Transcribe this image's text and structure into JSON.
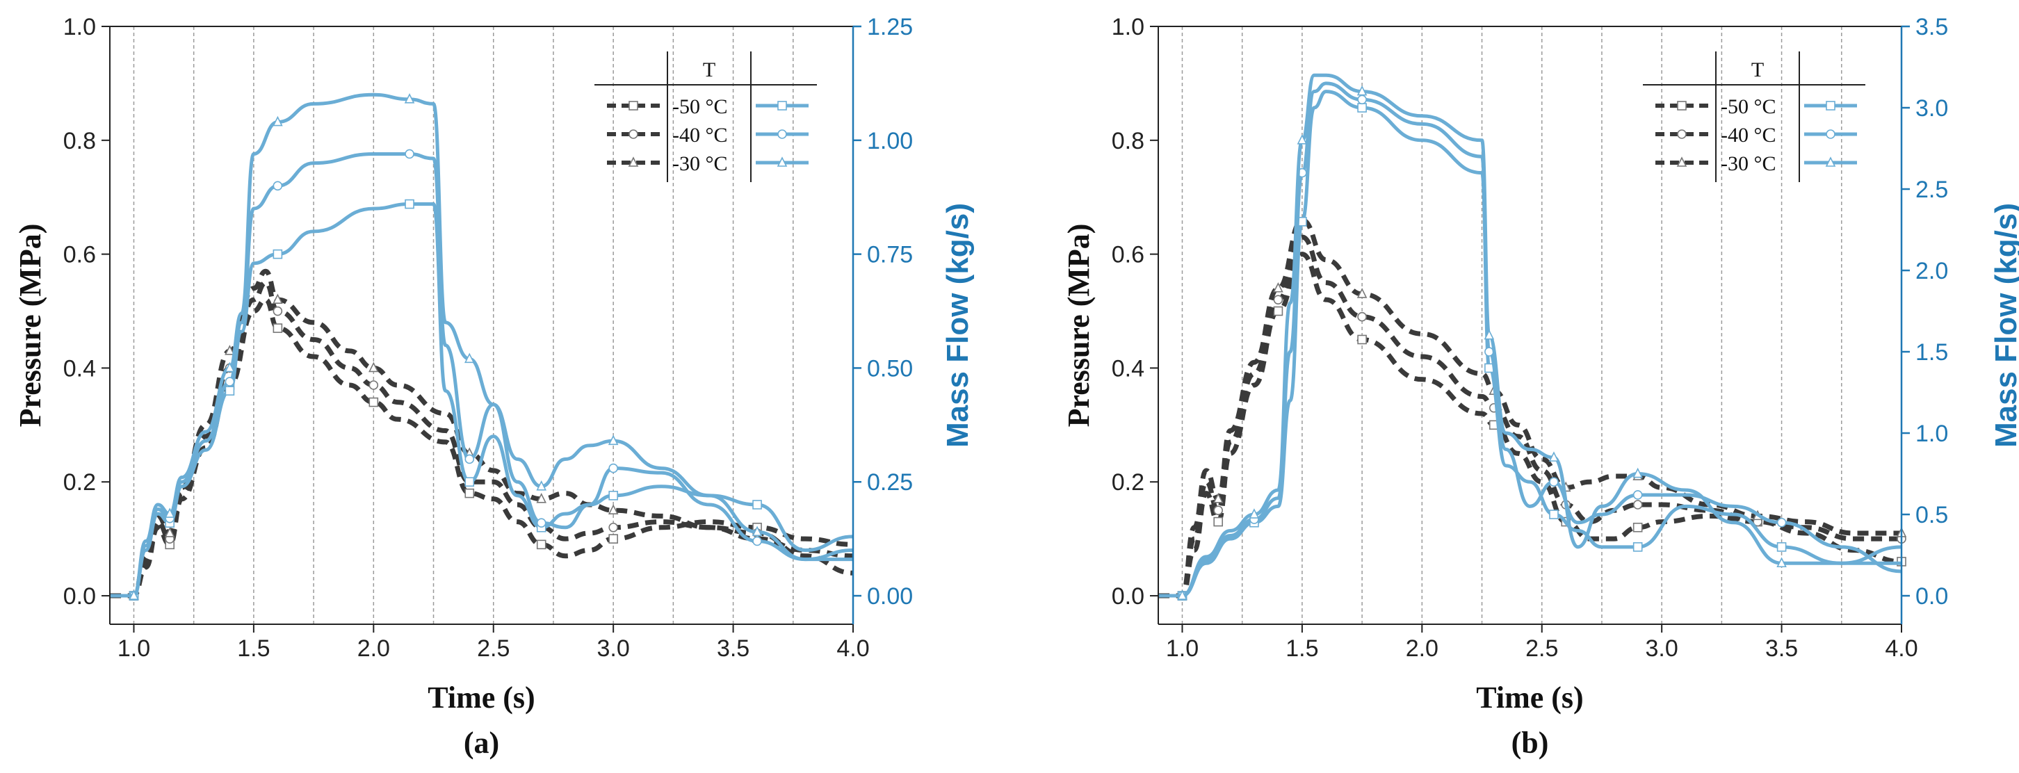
{
  "colors": {
    "pressure": "#3a3a3a",
    "massflow": "#6aadd5",
    "massflow_axis": "#1f78b4",
    "grid": "#9a9a9a"
  },
  "chart_data": [
    {
      "type": "line",
      "panel_label": "(a)",
      "xlabel": "Time (s)",
      "ylabel_left": "Pressure (MPa)",
      "ylabel_right": "Mass Flow (kg/s)",
      "xlim": [
        0.9,
        4.0
      ],
      "ylim_left": [
        -0.05,
        1.0
      ],
      "ylim_right": [
        -0.0625,
        1.25
      ],
      "xticks": [
        "1.0",
        "1.5",
        "2.0",
        "2.5",
        "3.0",
        "3.5",
        "4.0"
      ],
      "yticks_left": [
        "0.0",
        "0.2",
        "0.4",
        "0.6",
        "0.8",
        "1.0"
      ],
      "yticks_right": [
        "0.00",
        "0.25",
        "0.50",
        "0.75",
        "1.00",
        "1.25"
      ],
      "vgrid": [
        1.0,
        1.25,
        1.5,
        1.75,
        2.0,
        2.25,
        2.5,
        2.75,
        3.0,
        3.25,
        3.5,
        3.75
      ],
      "legend": {
        "title": "T",
        "entries": [
          "-50 °C",
          "-40 °C",
          "-30 °C"
        ]
      },
      "series": [
        {
          "name": "Pressure -50 °C",
          "axis": "left",
          "style": "dashed",
          "marker": "square",
          "x": [
            0.9,
            1.0,
            1.05,
            1.1,
            1.15,
            1.2,
            1.3,
            1.4,
            1.5,
            1.55,
            1.6,
            1.75,
            1.9,
            2.0,
            2.1,
            2.3,
            2.4,
            2.5,
            2.6,
            2.7,
            2.8,
            2.9,
            3.0,
            3.2,
            3.4,
            3.6,
            3.8,
            4.0
          ],
          "y": [
            0.0,
            0.0,
            0.05,
            0.12,
            0.09,
            0.17,
            0.26,
            0.37,
            0.5,
            0.52,
            0.47,
            0.42,
            0.37,
            0.34,
            0.31,
            0.27,
            0.18,
            0.17,
            0.13,
            0.09,
            0.07,
            0.08,
            0.1,
            0.12,
            0.13,
            0.12,
            0.1,
            0.09
          ]
        },
        {
          "name": "Pressure -40 °C",
          "axis": "left",
          "style": "dashed",
          "marker": "circle",
          "x": [
            0.9,
            1.0,
            1.05,
            1.1,
            1.15,
            1.2,
            1.3,
            1.4,
            1.5,
            1.55,
            1.6,
            1.75,
            1.9,
            2.0,
            2.1,
            2.3,
            2.4,
            2.5,
            2.6,
            2.7,
            2.8,
            2.9,
            3.0,
            3.2,
            3.4,
            3.6,
            3.8,
            4.0
          ],
          "y": [
            0.0,
            0.0,
            0.06,
            0.13,
            0.1,
            0.18,
            0.28,
            0.4,
            0.52,
            0.55,
            0.5,
            0.45,
            0.4,
            0.37,
            0.34,
            0.29,
            0.2,
            0.2,
            0.16,
            0.12,
            0.1,
            0.11,
            0.12,
            0.13,
            0.12,
            0.11,
            0.07,
            0.04
          ]
        },
        {
          "name": "Pressure -30 °C",
          "axis": "left",
          "style": "dashed",
          "marker": "triangle",
          "x": [
            0.9,
            1.0,
            1.05,
            1.1,
            1.15,
            1.2,
            1.3,
            1.4,
            1.5,
            1.55,
            1.6,
            1.75,
            1.9,
            2.0,
            2.1,
            2.3,
            2.4,
            2.5,
            2.6,
            2.7,
            2.8,
            2.9,
            3.0,
            3.2,
            3.4,
            3.6,
            3.8,
            4.0
          ],
          "y": [
            0.0,
            0.0,
            0.07,
            0.14,
            0.11,
            0.19,
            0.3,
            0.43,
            0.54,
            0.57,
            0.52,
            0.48,
            0.43,
            0.4,
            0.37,
            0.32,
            0.25,
            0.22,
            0.18,
            0.17,
            0.18,
            0.16,
            0.15,
            0.14,
            0.12,
            0.1,
            0.08,
            0.07
          ]
        },
        {
          "name": "Mass flow -50 °C",
          "axis": "right",
          "style": "solid",
          "marker": "square",
          "x": [
            0.9,
            1.0,
            1.05,
            1.1,
            1.15,
            1.2,
            1.3,
            1.4,
            1.45,
            1.5,
            1.6,
            1.75,
            2.0,
            2.15,
            2.25,
            2.3,
            2.4,
            2.5,
            2.6,
            2.7,
            2.8,
            2.9,
            3.0,
            3.2,
            3.4,
            3.6,
            3.8,
            4.0
          ],
          "y": [
            0.0,
            0.0,
            0.1,
            0.18,
            0.16,
            0.24,
            0.32,
            0.45,
            0.58,
            0.73,
            0.75,
            0.8,
            0.85,
            0.86,
            0.86,
            0.45,
            0.25,
            0.35,
            0.22,
            0.15,
            0.18,
            0.2,
            0.22,
            0.24,
            0.22,
            0.2,
            0.1,
            0.13
          ]
        },
        {
          "name": "Mass flow -40 °C",
          "axis": "right",
          "style": "solid",
          "marker": "circle",
          "x": [
            0.9,
            1.0,
            1.05,
            1.1,
            1.15,
            1.2,
            1.3,
            1.4,
            1.45,
            1.5,
            1.6,
            1.75,
            2.0,
            2.15,
            2.25,
            2.3,
            2.4,
            2.5,
            2.6,
            2.7,
            2.8,
            2.9,
            3.0,
            3.2,
            3.4,
            3.6,
            3.8,
            4.0
          ],
          "y": [
            0.0,
            0.0,
            0.11,
            0.19,
            0.17,
            0.25,
            0.34,
            0.47,
            0.6,
            0.85,
            0.9,
            0.95,
            0.97,
            0.97,
            0.96,
            0.55,
            0.3,
            0.42,
            0.25,
            0.16,
            0.15,
            0.2,
            0.28,
            0.27,
            0.2,
            0.12,
            0.08,
            0.1
          ]
        },
        {
          "name": "Mass flow -30 °C",
          "axis": "right",
          "style": "solid",
          "marker": "triangle",
          "x": [
            0.9,
            1.0,
            1.05,
            1.1,
            1.15,
            1.2,
            1.3,
            1.4,
            1.45,
            1.5,
            1.6,
            1.75,
            2.0,
            2.15,
            2.25,
            2.3,
            2.4,
            2.5,
            2.6,
            2.7,
            2.8,
            2.9,
            3.0,
            3.2,
            3.4,
            3.6,
            3.8,
            4.0
          ],
          "y": [
            0.0,
            0.0,
            0.12,
            0.2,
            0.18,
            0.26,
            0.36,
            0.5,
            0.62,
            0.97,
            1.04,
            1.08,
            1.1,
            1.09,
            1.08,
            0.6,
            0.52,
            0.42,
            0.3,
            0.24,
            0.3,
            0.33,
            0.34,
            0.28,
            0.22,
            0.14,
            0.08,
            0.08
          ]
        }
      ]
    },
    {
      "type": "line",
      "panel_label": "(b)",
      "xlabel": "Time (s)",
      "ylabel_left": "Pressure (MPa)",
      "ylabel_right": "Mass Flow (kg/s)",
      "xlim": [
        0.9,
        4.0
      ],
      "ylim_left": [
        -0.05,
        1.0
      ],
      "ylim_right": [
        -0.175,
        3.5
      ],
      "xticks": [
        "1.0",
        "1.5",
        "2.0",
        "2.5",
        "3.0",
        "3.5",
        "4.0"
      ],
      "yticks_left": [
        "0.0",
        "0.2",
        "0.4",
        "0.6",
        "0.8",
        "1.0"
      ],
      "yticks_right": [
        "0.0",
        "0.5",
        "1.0",
        "1.5",
        "2.0",
        "2.5",
        "3.0",
        "3.5"
      ],
      "vgrid": [
        1.0,
        1.25,
        1.5,
        1.75,
        2.0,
        2.25,
        2.5,
        2.75,
        3.0,
        3.25,
        3.5,
        3.75
      ],
      "legend": {
        "title": "T",
        "entries": [
          "-50 °C",
          "-40 °C",
          "-30 °C"
        ]
      },
      "series": [
        {
          "name": "Pressure -50 °C",
          "axis": "left",
          "style": "dashed",
          "marker": "square",
          "x": [
            0.9,
            1.0,
            1.05,
            1.1,
            1.15,
            1.2,
            1.3,
            1.4,
            1.5,
            1.6,
            1.75,
            2.0,
            2.25,
            2.3,
            2.4,
            2.5,
            2.6,
            2.7,
            2.8,
            2.9,
            3.0,
            3.2,
            3.4,
            3.6,
            3.8,
            4.0
          ],
          "y": [
            0.0,
            0.0,
            0.08,
            0.18,
            0.13,
            0.25,
            0.37,
            0.5,
            0.6,
            0.52,
            0.45,
            0.38,
            0.32,
            0.3,
            0.25,
            0.2,
            0.13,
            0.1,
            0.1,
            0.12,
            0.13,
            0.14,
            0.13,
            0.11,
            0.08,
            0.06
          ]
        },
        {
          "name": "Pressure -40 °C",
          "axis": "left",
          "style": "dashed",
          "marker": "circle",
          "x": [
            0.9,
            1.0,
            1.05,
            1.1,
            1.15,
            1.2,
            1.3,
            1.4,
            1.5,
            1.6,
            1.75,
            2.0,
            2.25,
            2.3,
            2.4,
            2.5,
            2.6,
            2.7,
            2.8,
            2.9,
            3.0,
            3.2,
            3.4,
            3.6,
            3.8,
            4.0
          ],
          "y": [
            0.0,
            0.0,
            0.1,
            0.2,
            0.15,
            0.27,
            0.39,
            0.52,
            0.63,
            0.55,
            0.49,
            0.42,
            0.35,
            0.33,
            0.28,
            0.22,
            0.16,
            0.13,
            0.15,
            0.16,
            0.16,
            0.15,
            0.13,
            0.12,
            0.1,
            0.1
          ]
        },
        {
          "name": "Pressure -30 °C",
          "axis": "left",
          "style": "dashed",
          "marker": "triangle",
          "x": [
            0.9,
            1.0,
            1.05,
            1.1,
            1.15,
            1.2,
            1.3,
            1.4,
            1.5,
            1.6,
            1.75,
            2.0,
            2.25,
            2.3,
            2.4,
            2.5,
            2.6,
            2.7,
            2.8,
            2.9,
            3.0,
            3.2,
            3.4,
            3.6,
            3.8,
            4.0
          ],
          "y": [
            0.0,
            0.0,
            0.12,
            0.22,
            0.17,
            0.29,
            0.41,
            0.54,
            0.66,
            0.59,
            0.53,
            0.46,
            0.39,
            0.36,
            0.3,
            0.24,
            0.19,
            0.2,
            0.21,
            0.21,
            0.19,
            0.16,
            0.14,
            0.13,
            0.11,
            0.11
          ]
        },
        {
          "name": "Mass flow -50 °C",
          "axis": "right",
          "style": "solid",
          "marker": "square",
          "x": [
            0.9,
            1.0,
            1.1,
            1.2,
            1.3,
            1.4,
            1.45,
            1.5,
            1.55,
            1.6,
            1.75,
            2.0,
            2.25,
            2.28,
            2.35,
            2.45,
            2.55,
            2.65,
            2.75,
            2.9,
            3.1,
            3.3,
            3.5,
            3.75,
            4.0
          ],
          "y": [
            0.0,
            0.0,
            0.2,
            0.35,
            0.45,
            0.55,
            1.2,
            2.3,
            3.0,
            3.1,
            3.0,
            2.8,
            2.6,
            1.4,
            0.8,
            0.7,
            0.5,
            0.4,
            0.3,
            0.3,
            0.55,
            0.5,
            0.3,
            0.2,
            0.3
          ]
        },
        {
          "name": "Mass flow -40 °C",
          "axis": "right",
          "style": "solid",
          "marker": "circle",
          "x": [
            0.9,
            1.0,
            1.1,
            1.2,
            1.3,
            1.4,
            1.45,
            1.5,
            1.55,
            1.6,
            1.75,
            2.0,
            2.25,
            2.28,
            2.35,
            2.45,
            2.55,
            2.65,
            2.75,
            2.9,
            3.1,
            3.3,
            3.5,
            3.75,
            4.0
          ],
          "y": [
            0.0,
            0.0,
            0.22,
            0.37,
            0.47,
            0.6,
            1.5,
            2.6,
            3.1,
            3.15,
            3.05,
            2.9,
            2.7,
            1.5,
            0.9,
            0.55,
            0.7,
            0.45,
            0.5,
            0.62,
            0.62,
            0.55,
            0.45,
            0.3,
            0.15
          ]
        },
        {
          "name": "Mass flow -30 °C",
          "axis": "right",
          "style": "solid",
          "marker": "triangle",
          "x": [
            0.9,
            1.0,
            1.1,
            1.2,
            1.3,
            1.4,
            1.45,
            1.5,
            1.55,
            1.6,
            1.75,
            2.0,
            2.25,
            2.28,
            2.35,
            2.45,
            2.55,
            2.65,
            2.75,
            2.9,
            3.1,
            3.3,
            3.5,
            3.75,
            4.0
          ],
          "y": [
            0.0,
            0.0,
            0.24,
            0.4,
            0.5,
            0.65,
            1.8,
            2.8,
            3.2,
            3.2,
            3.1,
            2.95,
            2.8,
            1.6,
            1.0,
            0.9,
            0.85,
            0.3,
            0.55,
            0.75,
            0.65,
            0.45,
            0.2,
            0.2,
            0.2
          ]
        }
      ]
    }
  ]
}
